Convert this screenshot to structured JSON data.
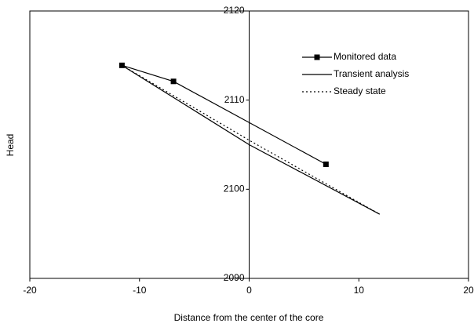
{
  "chart_data": {
    "type": "line",
    "x_label": "Distance from the center of the core",
    "y_label": "Head",
    "xlim": [
      -20,
      20
    ],
    "xticks": [
      -20,
      -10,
      0,
      10,
      20
    ],
    "ylim": [
      2090,
      2120
    ],
    "yticks": [
      2090,
      2100,
      2110,
      2120
    ],
    "legend": "upper right",
    "series": [
      {
        "name": "Monitored data",
        "color": "#000000",
        "marker": "square",
        "dash": "solid",
        "x": [
          -11.6,
          -6.9,
          7.0
        ],
        "values": [
          2113.9,
          2112.1,
          2102.8
        ]
      },
      {
        "name": "Transient analysis",
        "color": "#000000",
        "marker": "none",
        "dash": "solid",
        "x": [
          -11.6,
          0,
          11.9
        ],
        "values": [
          2113.9,
          2105.0,
          2097.2
        ]
      },
      {
        "name": "Steady state",
        "color": "#000000",
        "marker": "none",
        "dash": "dotted",
        "x": [
          -11.6,
          0,
          11.9
        ],
        "values": [
          2113.9,
          2105.5,
          2097.2
        ]
      }
    ]
  }
}
